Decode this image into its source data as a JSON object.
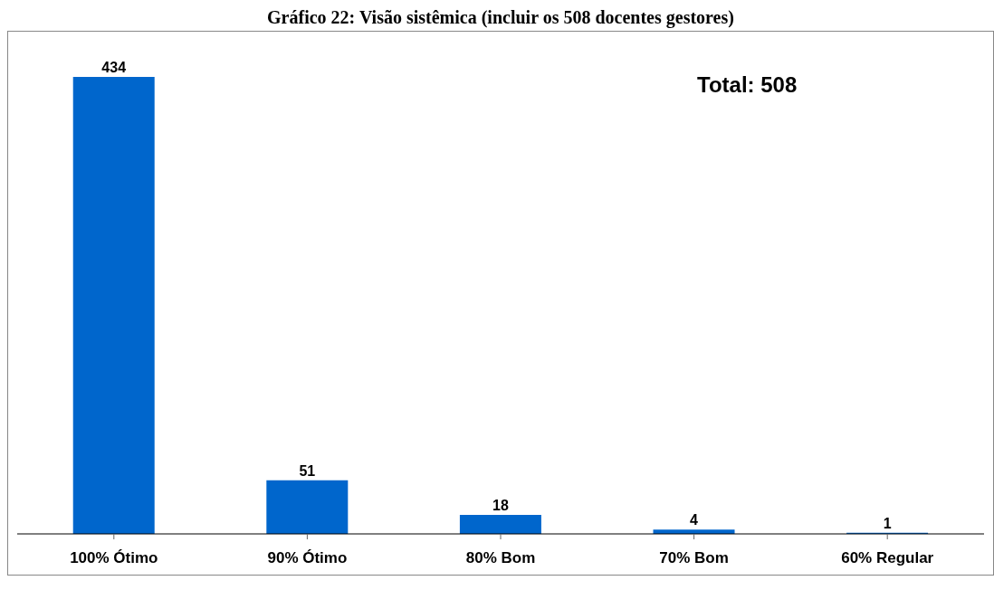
{
  "chart_data": {
    "type": "bar",
    "title": "Gráfico 22: Visão sistêmica (incluir os 508 docentes gestores)",
    "categories": [
      "100% Ótimo",
      "90% Ótimo",
      "80% Bom",
      "70% Bom",
      "60% Regular"
    ],
    "values": [
      434,
      51,
      18,
      4,
      1
    ],
    "color": "#0066cc",
    "data_labels": true,
    "annotations": [
      "Total: 508"
    ]
  }
}
